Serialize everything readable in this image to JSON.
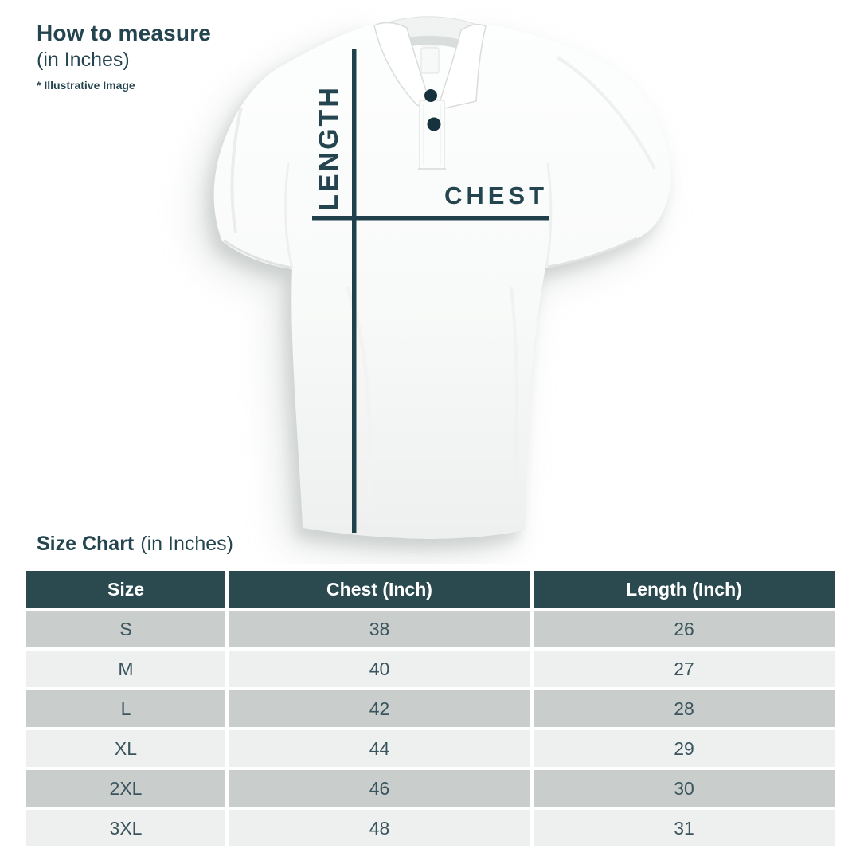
{
  "colors": {
    "teal_text": "#24454f",
    "line_color": "#20414b",
    "header_bg": "#2b4a4f",
    "header_text": "#ffffff",
    "row_gray": "#c9cecc",
    "row_light": "#eef0ef",
    "row_text": "#3a545d",
    "button_color": "#16323c",
    "shirt_white": "#fbfcfc"
  },
  "measure": {
    "title": "How to measure",
    "subtitle": "(in Inches)",
    "note": "* Illustrative Image",
    "length_label": "LENGTH",
    "chest_label": "CHEST"
  },
  "size_chart_title": {
    "bold": "Size Chart",
    "regular": "(in Inches)"
  },
  "chart_data": {
    "type": "table",
    "title": "Size Chart (in Inches)",
    "columns": [
      "Size",
      "Chest (Inch)",
      "Length (Inch)"
    ],
    "rows": [
      [
        "S",
        "38",
        "26"
      ],
      [
        "M",
        "40",
        "27"
      ],
      [
        "L",
        "42",
        "28"
      ],
      [
        "XL",
        "44",
        "29"
      ],
      [
        "2XL",
        "46",
        "30"
      ],
      [
        "3XL",
        "48",
        "31"
      ]
    ]
  }
}
